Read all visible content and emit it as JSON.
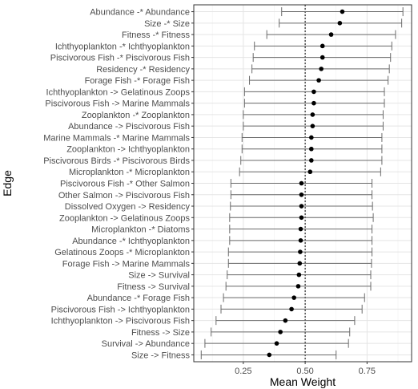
{
  "chart_data": {
    "type": "scatter",
    "orientation": "horizontal",
    "xlabel": "Mean Weight",
    "ylabel": "Edge",
    "xlim": [
      0.05,
      0.93
    ],
    "x_ticks": [
      0.25,
      0.5,
      0.75
    ],
    "x_tick_labels": [
      "0.25",
      "0.50",
      "0.75"
    ],
    "reference_line": 0.5,
    "grid": true,
    "edges": [
      {
        "label": "Abundance -* Abundance",
        "mean": 0.65,
        "low": 0.405,
        "high": 0.895
      },
      {
        "label": "Size -* Size",
        "mean": 0.64,
        "low": 0.395,
        "high": 0.89
      },
      {
        "label": "Fitness -* Fitness",
        "mean": 0.605,
        "low": 0.345,
        "high": 0.865
      },
      {
        "label": "Ichthyoplankton -* Ichthyoplankton",
        "mean": 0.57,
        "low": 0.295,
        "high": 0.85
      },
      {
        "label": "Piscivorous Fish -* Piscivorous Fish",
        "mean": 0.57,
        "low": 0.29,
        "high": 0.845
      },
      {
        "label": "Residency -* Residency",
        "mean": 0.565,
        "low": 0.285,
        "high": 0.84
      },
      {
        "label": "Forage Fish -* Forage Fish",
        "mean": 0.555,
        "low": 0.275,
        "high": 0.835
      },
      {
        "label": "Ichthyoplankton -> Gelatinous Zoops",
        "mean": 0.535,
        "low": 0.255,
        "high": 0.82
      },
      {
        "label": "Piscivorous Fish -> Marine Mammals",
        "mean": 0.535,
        "low": 0.255,
        "high": 0.82
      },
      {
        "label": "Zooplankton -* Zooplankton",
        "mean": 0.53,
        "low": 0.25,
        "high": 0.815
      },
      {
        "label": "Abundance -> Piscivorous Fish",
        "mean": 0.53,
        "low": 0.25,
        "high": 0.815
      },
      {
        "label": "Marine Mammals -* Marine Mammals",
        "mean": 0.525,
        "low": 0.245,
        "high": 0.81
      },
      {
        "label": "Zooplankton -> Ichthyoplankton",
        "mean": 0.525,
        "low": 0.245,
        "high": 0.81
      },
      {
        "label": "Piscivorous Birds -* Piscivorous Birds",
        "mean": 0.525,
        "low": 0.24,
        "high": 0.81
      },
      {
        "label": "Microplankton -* Microplankton",
        "mean": 0.52,
        "low": 0.235,
        "high": 0.805
      },
      {
        "label": "Piscivorous Fish -* Other Salmon",
        "mean": 0.485,
        "low": 0.2,
        "high": 0.77
      },
      {
        "label": "Other Salmon -> Piscivorous Fish",
        "mean": 0.485,
        "low": 0.2,
        "high": 0.77
      },
      {
        "label": "Dissolved Oxygen -> Residency",
        "mean": 0.485,
        "low": 0.198,
        "high": 0.772
      },
      {
        "label": "Zooplankton -> Gelatinous Zoops",
        "mean": 0.485,
        "low": 0.195,
        "high": 0.775
      },
      {
        "label": "Microplankton -* Diatoms",
        "mean": 0.482,
        "low": 0.195,
        "high": 0.77
      },
      {
        "label": "Abundance -* Ichthyoplankton",
        "mean": 0.482,
        "low": 0.195,
        "high": 0.77
      },
      {
        "label": "Gelatinous Zoops -* Microplankton",
        "mean": 0.48,
        "low": 0.19,
        "high": 0.77
      },
      {
        "label": "Forage Fish -> Marine Mammals",
        "mean": 0.478,
        "low": 0.19,
        "high": 0.768
      },
      {
        "label": "Size -> Survival",
        "mean": 0.475,
        "low": 0.185,
        "high": 0.765
      },
      {
        "label": "Fitness -> Survival",
        "mean": 0.472,
        "low": 0.18,
        "high": 0.765
      },
      {
        "label": "Abundance -* Forage Fish",
        "mean": 0.455,
        "low": 0.17,
        "high": 0.74
      },
      {
        "label": "Piscivorous Fish -> Ichthyoplankton",
        "mean": 0.445,
        "low": 0.16,
        "high": 0.73
      },
      {
        "label": "Ichthyoplankton -> Piscivorous Fish",
        "mean": 0.42,
        "low": 0.14,
        "high": 0.7
      },
      {
        "label": "Fitness -> Size",
        "mean": 0.4,
        "low": 0.12,
        "high": 0.68
      },
      {
        "label": "Survival -> Abundance",
        "mean": 0.385,
        "low": 0.095,
        "high": 0.675
      },
      {
        "label": "Size -> Fitness",
        "mean": 0.355,
        "low": 0.08,
        "high": 0.625
      }
    ]
  }
}
